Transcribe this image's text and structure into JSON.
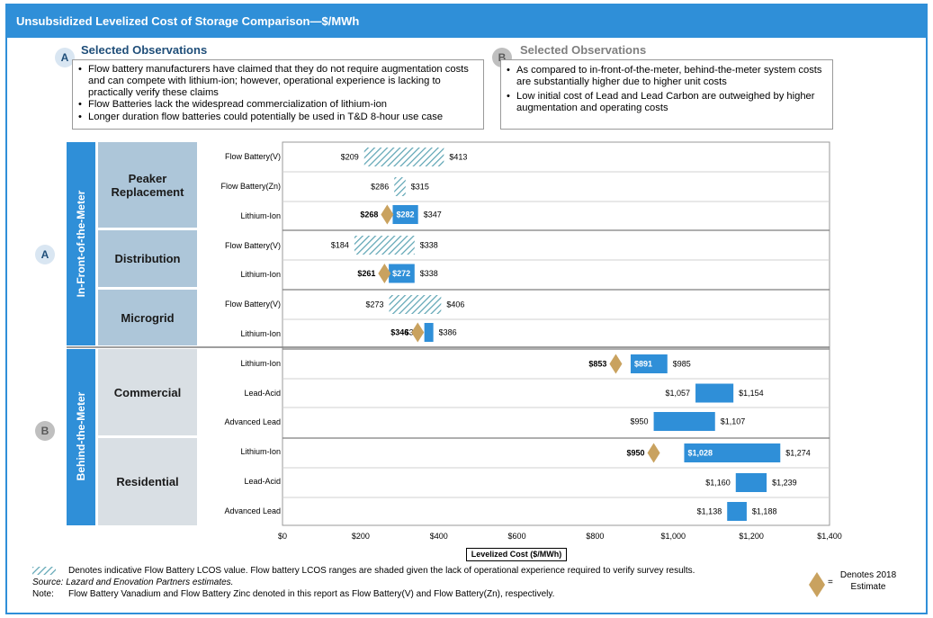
{
  "title": "Unsubsidized  Levelized Cost of Storage Comparison—$/MWh",
  "colors": {
    "accent": "#2f8fd8",
    "diamond": "#c9a25f",
    "hatch": "#5ba3b3"
  },
  "obs_a": {
    "marker": "A",
    "heading": "Selected Observations",
    "bullets": [
      "Flow battery manufacturers have claimed that they do not require augmentation costs and can compete with lithium-ion; however, operational experience is lacking to practically verify these claims",
      "Flow Batteries lack the widespread commercialization of lithium-ion",
      "Longer duration flow batteries could potentially be used in T&D 8-hour use case"
    ]
  },
  "obs_b": {
    "marker": "B",
    "heading": "Selected Observations",
    "bullets": [
      "As compared to in-front-of-the-meter, behind-the-meter system costs are substantially higher due to higher unit costs",
      "Low initial cost of Lead and Lead Carbon are outweighed by higher augmentation and operating costs"
    ]
  },
  "sections": {
    "front": {
      "label": "In-Front-of-the-Meter",
      "marker": "A"
    },
    "behind": {
      "label": "Behind-the-Meter",
      "marker": "B"
    }
  },
  "categories": [
    "Peaker Replacement",
    "Distribution",
    "Microgrid",
    "Commercial",
    "Residential"
  ],
  "chart_data": {
    "type": "bar",
    "orientation": "horizontal-range",
    "xlabel": "Levelized Cost ($/MWh)",
    "xlim": [
      0,
      1400
    ],
    "xticks": [
      "$0",
      "$200",
      "$400",
      "$600",
      "$800",
      "$1,000",
      "$1,200",
      "$1,400"
    ],
    "rows": [
      {
        "group": "Peaker Replacement",
        "tech": "Flow Battery(V)",
        "low": 209,
        "high": 413,
        "low_label": "$209",
        "high_label": "$413",
        "hatched": true
      },
      {
        "group": "Peaker Replacement",
        "tech": "Flow Battery(Zn)",
        "low": 286,
        "high": 315,
        "low_label": "$286",
        "high_label": "$315",
        "hatched": true
      },
      {
        "group": "Peaker Replacement",
        "tech": "Lithium-Ion",
        "low": 282,
        "high": 347,
        "low_label": "$282",
        "high_label": "$347",
        "estimate": 268,
        "estimate_label": "$268"
      },
      {
        "group": "Distribution",
        "tech": "Flow Battery(V)",
        "low": 184,
        "high": 338,
        "low_label": "$184",
        "high_label": "$338",
        "hatched": true
      },
      {
        "group": "Distribution",
        "tech": "Lithium-Ion",
        "low": 272,
        "high": 338,
        "low_label": "$272",
        "high_label": "$338",
        "estimate": 261,
        "estimate_label": "$261"
      },
      {
        "group": "Microgrid",
        "tech": "Flow Battery(V)",
        "low": 273,
        "high": 406,
        "low_label": "$273",
        "high_label": "$406",
        "hatched": true
      },
      {
        "group": "Microgrid",
        "tech": "Lithium-Ion",
        "low": 363,
        "high": 386,
        "low_label": "$363",
        "high_label": "$386",
        "estimate": 346,
        "estimate_label": "$346"
      },
      {
        "group": "Commercial",
        "tech": "Lithium-Ion",
        "low": 891,
        "high": 985,
        "low_label": "$891",
        "high_label": "$985",
        "estimate": 853,
        "estimate_label": "$853"
      },
      {
        "group": "Commercial",
        "tech": "Lead-Acid",
        "low": 1057,
        "high": 1154,
        "low_label": "$1,057",
        "high_label": "$1,154"
      },
      {
        "group": "Commercial",
        "tech": "Advanced Lead",
        "low": 950,
        "high": 1107,
        "low_label": "$950",
        "high_label": "$1,107"
      },
      {
        "group": "Residential",
        "tech": "Lithium-Ion",
        "low": 1028,
        "high": 1274,
        "low_label": "$1,028",
        "high_label": "$1,274",
        "estimate": 950,
        "estimate_label": "$950"
      },
      {
        "group": "Residential",
        "tech": "Lead-Acid",
        "low": 1160,
        "high": 1239,
        "low_label": "$1,160",
        "high_label": "$1,239"
      },
      {
        "group": "Residential",
        "tech": "Advanced Lead",
        "low": 1138,
        "high": 1188,
        "low_label": "$1,138",
        "high_label": "$1,188"
      }
    ]
  },
  "legend": {
    "hatch_text": "Denotes indicative Flow Battery LCOS value. Flow battery LCOS ranges are shaded given the lack of operational experience required to verify survey results.",
    "diamond_eq": "=",
    "diamond_text": "Denotes 2018 Estimate"
  },
  "source": "Source: Lazard and Enovation Partners estimates.",
  "note_label": "Note:",
  "note_text": "Flow Battery Vanadium and Flow Battery Zinc denoted in this report as Flow Battery(V) and Flow Battery(Zn), respectively."
}
